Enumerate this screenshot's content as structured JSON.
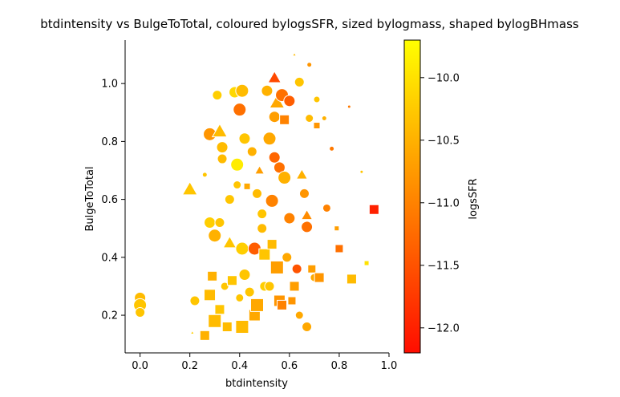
{
  "chart_data": {
    "type": "scatter",
    "title": "btdintensity vs BulgeToTotal, coloured bylogsSFR, sized bylogmass, shaped bylogBHmass",
    "xlabel": "btdintensity",
    "ylabel": "BulgeToTotal",
    "xlim": [
      -0.06,
      1.0
    ],
    "ylim": [
      0.07,
      1.15
    ],
    "x_ticks": [
      "0.0",
      "0.2",
      "0.4",
      "0.6",
      "0.8",
      "1.0"
    ],
    "y_ticks": [
      "0.2",
      "0.4",
      "0.6",
      "0.8",
      "1.0"
    ],
    "colorbar": {
      "label": "logsSFR",
      "range": [
        -12.2,
        -9.7
      ],
      "ticks": [
        "-10.0",
        "-10.5",
        "-11.0",
        "-11.5",
        "-12.0"
      ],
      "colormap": [
        "#ff0d00",
        "#ff6400",
        "#ffaa00",
        "#ffff00"
      ]
    },
    "grid": false,
    "points": [
      {
        "x": 0.0,
        "y": 0.26,
        "c": -10.4,
        "s": 7,
        "m": "circle"
      },
      {
        "x": 0.0,
        "y": 0.235,
        "c": -10.3,
        "s": 8,
        "m": "circle"
      },
      {
        "x": 0.0,
        "y": 0.21,
        "c": -10.3,
        "s": 6,
        "m": "circle"
      },
      {
        "x": 0.2,
        "y": 0.635,
        "c": -10.3,
        "s": 8,
        "m": "triangle"
      },
      {
        "x": 0.21,
        "y": 0.14,
        "c": -10.2,
        "s": 2,
        "m": "triangle"
      },
      {
        "x": 0.22,
        "y": 0.25,
        "c": -10.3,
        "s": 6,
        "m": "circle"
      },
      {
        "x": 0.26,
        "y": 0.685,
        "c": -10.3,
        "s": 3,
        "m": "circle"
      },
      {
        "x": 0.26,
        "y": 0.13,
        "c": -10.5,
        "s": 6,
        "m": "square"
      },
      {
        "x": 0.28,
        "y": 0.825,
        "c": -10.8,
        "s": 8,
        "m": "circle"
      },
      {
        "x": 0.28,
        "y": 0.52,
        "c": -10.2,
        "s": 7,
        "m": "circle"
      },
      {
        "x": 0.28,
        "y": 0.27,
        "c": -10.4,
        "s": 7,
        "m": "square"
      },
      {
        "x": 0.29,
        "y": 0.335,
        "c": -10.5,
        "s": 6,
        "m": "square"
      },
      {
        "x": 0.3,
        "y": 0.475,
        "c": -10.5,
        "s": 8,
        "m": "circle"
      },
      {
        "x": 0.3,
        "y": 0.18,
        "c": -10.4,
        "s": 8,
        "m": "square"
      },
      {
        "x": 0.31,
        "y": 0.96,
        "c": -10.2,
        "s": 6,
        "m": "circle"
      },
      {
        "x": 0.32,
        "y": 0.835,
        "c": -10.4,
        "s": 8,
        "m": "triangle"
      },
      {
        "x": 0.32,
        "y": 0.52,
        "c": -10.3,
        "s": 6,
        "m": "circle"
      },
      {
        "x": 0.32,
        "y": 0.22,
        "c": -10.3,
        "s": 6,
        "m": "square"
      },
      {
        "x": 0.33,
        "y": 0.78,
        "c": -10.4,
        "s": 7,
        "m": "circle"
      },
      {
        "x": 0.33,
        "y": 0.74,
        "c": -10.4,
        "s": 6,
        "m": "circle"
      },
      {
        "x": 0.34,
        "y": 0.3,
        "c": -10.3,
        "s": 5,
        "m": "circle"
      },
      {
        "x": 0.35,
        "y": 0.16,
        "c": -10.4,
        "s": 6,
        "m": "square"
      },
      {
        "x": 0.36,
        "y": 0.6,
        "c": -10.3,
        "s": 6,
        "m": "circle"
      },
      {
        "x": 0.36,
        "y": 0.45,
        "c": -10.3,
        "s": 7,
        "m": "triangle"
      },
      {
        "x": 0.37,
        "y": 0.32,
        "c": -10.3,
        "s": 6,
        "m": "square"
      },
      {
        "x": 0.38,
        "y": 0.97,
        "c": -10.1,
        "s": 7,
        "m": "circle"
      },
      {
        "x": 0.39,
        "y": 0.72,
        "c": -9.9,
        "s": 8,
        "m": "circle"
      },
      {
        "x": 0.39,
        "y": 0.65,
        "c": -10.3,
        "s": 5,
        "m": "circle"
      },
      {
        "x": 0.4,
        "y": 0.91,
        "c": -11.2,
        "s": 8,
        "m": "circle"
      },
      {
        "x": 0.4,
        "y": 0.26,
        "c": -10.3,
        "s": 5,
        "m": "circle"
      },
      {
        "x": 0.41,
        "y": 0.975,
        "c": -10.4,
        "s": 8,
        "m": "circle"
      },
      {
        "x": 0.41,
        "y": 0.43,
        "c": -10.2,
        "s": 8,
        "m": "circle"
      },
      {
        "x": 0.41,
        "y": 0.16,
        "c": -10.4,
        "s": 8,
        "m": "square"
      },
      {
        "x": 0.42,
        "y": 0.81,
        "c": -10.3,
        "s": 7,
        "m": "circle"
      },
      {
        "x": 0.42,
        "y": 0.34,
        "c": -10.3,
        "s": 7,
        "m": "circle"
      },
      {
        "x": 0.43,
        "y": 0.645,
        "c": -10.6,
        "s": 4,
        "m": "square"
      },
      {
        "x": 0.44,
        "y": 0.28,
        "c": -10.3,
        "s": 6,
        "m": "circle"
      },
      {
        "x": 0.45,
        "y": 0.765,
        "c": -10.5,
        "s": 6,
        "m": "circle"
      },
      {
        "x": 0.46,
        "y": 0.43,
        "c": -11.4,
        "s": 8,
        "m": "circle"
      },
      {
        "x": 0.46,
        "y": 0.2,
        "c": -10.6,
        "s": 7,
        "m": "square"
      },
      {
        "x": 0.47,
        "y": 0.235,
        "c": -10.6,
        "s": 8,
        "m": "square"
      },
      {
        "x": 0.47,
        "y": 0.62,
        "c": -10.4,
        "s": 6,
        "m": "circle"
      },
      {
        "x": 0.48,
        "y": 0.7,
        "c": -10.7,
        "s": 5,
        "m": "triangle"
      },
      {
        "x": 0.49,
        "y": 0.55,
        "c": -10.3,
        "s": 6,
        "m": "circle"
      },
      {
        "x": 0.49,
        "y": 0.5,
        "c": -10.4,
        "s": 6,
        "m": "circle"
      },
      {
        "x": 0.5,
        "y": 0.41,
        "c": -10.3,
        "s": 7,
        "m": "square"
      },
      {
        "x": 0.5,
        "y": 0.3,
        "c": -10.2,
        "s": 6,
        "m": "circle"
      },
      {
        "x": 0.51,
        "y": 0.975,
        "c": -10.5,
        "s": 7,
        "m": "circle"
      },
      {
        "x": 0.52,
        "y": 0.81,
        "c": -10.6,
        "s": 8,
        "m": "circle"
      },
      {
        "x": 0.52,
        "y": 0.3,
        "c": -10.3,
        "s": 6,
        "m": "circle"
      },
      {
        "x": 0.53,
        "y": 0.595,
        "c": -11.0,
        "s": 8,
        "m": "circle"
      },
      {
        "x": 0.53,
        "y": 0.445,
        "c": -10.4,
        "s": 6,
        "m": "square"
      },
      {
        "x": 0.54,
        "y": 1.02,
        "c": -11.6,
        "s": 7,
        "m": "triangle"
      },
      {
        "x": 0.54,
        "y": 0.745,
        "c": -11.3,
        "s": 7,
        "m": "circle"
      },
      {
        "x": 0.54,
        "y": 0.885,
        "c": -10.7,
        "s": 7,
        "m": "circle"
      },
      {
        "x": 0.55,
        "y": 0.935,
        "c": -10.6,
        "s": 8,
        "m": "triangle"
      },
      {
        "x": 0.55,
        "y": 0.365,
        "c": -10.7,
        "s": 8,
        "m": "square"
      },
      {
        "x": 0.56,
        "y": 0.71,
        "c": -11.2,
        "s": 7,
        "m": "circle"
      },
      {
        "x": 0.56,
        "y": 0.25,
        "c": -10.8,
        "s": 7,
        "m": "square"
      },
      {
        "x": 0.57,
        "y": 0.96,
        "c": -11.2,
        "s": 8,
        "m": "circle"
      },
      {
        "x": 0.57,
        "y": 0.235,
        "c": -11.0,
        "s": 6,
        "m": "square"
      },
      {
        "x": 0.58,
        "y": 0.875,
        "c": -11.0,
        "s": 6,
        "m": "square"
      },
      {
        "x": 0.58,
        "y": 0.675,
        "c": -10.5,
        "s": 8,
        "m": "circle"
      },
      {
        "x": 0.59,
        "y": 0.4,
        "c": -10.6,
        "s": 6,
        "m": "circle"
      },
      {
        "x": 0.6,
        "y": 0.94,
        "c": -11.4,
        "s": 7,
        "m": "circle"
      },
      {
        "x": 0.6,
        "y": 0.535,
        "c": -11.0,
        "s": 7,
        "m": "circle"
      },
      {
        "x": 0.61,
        "y": 0.25,
        "c": -10.8,
        "s": 5,
        "m": "square"
      },
      {
        "x": 0.62,
        "y": 1.1,
        "c": -10.4,
        "s": 2,
        "m": "triangle"
      },
      {
        "x": 0.62,
        "y": 0.3,
        "c": -10.7,
        "s": 6,
        "m": "square"
      },
      {
        "x": 0.63,
        "y": 0.36,
        "c": -11.5,
        "s": 6,
        "m": "circle"
      },
      {
        "x": 0.64,
        "y": 1.005,
        "c": -10.3,
        "s": 6,
        "m": "circle"
      },
      {
        "x": 0.64,
        "y": 0.2,
        "c": -10.6,
        "s": 5,
        "m": "circle"
      },
      {
        "x": 0.65,
        "y": 0.685,
        "c": -10.5,
        "s": 6,
        "m": "triangle"
      },
      {
        "x": 0.66,
        "y": 0.62,
        "c": -10.8,
        "s": 6,
        "m": "circle"
      },
      {
        "x": 0.67,
        "y": 0.545,
        "c": -10.9,
        "s": 6,
        "m": "triangle"
      },
      {
        "x": 0.67,
        "y": 0.505,
        "c": -11.2,
        "s": 7,
        "m": "circle"
      },
      {
        "x": 0.67,
        "y": 0.16,
        "c": -10.6,
        "s": 6,
        "m": "circle"
      },
      {
        "x": 0.68,
        "y": 1.065,
        "c": -10.8,
        "s": 3,
        "m": "circle"
      },
      {
        "x": 0.68,
        "y": 0.88,
        "c": -10.4,
        "s": 5,
        "m": "circle"
      },
      {
        "x": 0.69,
        "y": 0.36,
        "c": -10.7,
        "s": 5,
        "m": "square"
      },
      {
        "x": 0.7,
        "y": 0.33,
        "c": -10.6,
        "s": 5,
        "m": "circle"
      },
      {
        "x": 0.71,
        "y": 0.855,
        "c": -10.8,
        "s": 4,
        "m": "square"
      },
      {
        "x": 0.71,
        "y": 0.945,
        "c": -10.3,
        "s": 4,
        "m": "circle"
      },
      {
        "x": 0.72,
        "y": 0.33,
        "c": -10.8,
        "s": 6,
        "m": "square"
      },
      {
        "x": 0.74,
        "y": 0.88,
        "c": -10.5,
        "s": 3,
        "m": "circle"
      },
      {
        "x": 0.75,
        "y": 0.57,
        "c": -11.0,
        "s": 5,
        "m": "circle"
      },
      {
        "x": 0.77,
        "y": 0.775,
        "c": -11.1,
        "s": 3,
        "m": "circle"
      },
      {
        "x": 0.79,
        "y": 0.5,
        "c": -10.7,
        "s": 3,
        "m": "square"
      },
      {
        "x": 0.8,
        "y": 0.43,
        "c": -11.2,
        "s": 5,
        "m": "square"
      },
      {
        "x": 0.84,
        "y": 0.92,
        "c": -11.1,
        "s": 2,
        "m": "circle"
      },
      {
        "x": 0.85,
        "y": 0.325,
        "c": -10.4,
        "s": 6,
        "m": "square"
      },
      {
        "x": 0.89,
        "y": 0.695,
        "c": -10.3,
        "s": 2,
        "m": "circle"
      },
      {
        "x": 0.91,
        "y": 0.38,
        "c": -10.0,
        "s": 3,
        "m": "square"
      },
      {
        "x": 0.94,
        "y": 0.565,
        "c": -12.0,
        "s": 6,
        "m": "square"
      }
    ]
  }
}
